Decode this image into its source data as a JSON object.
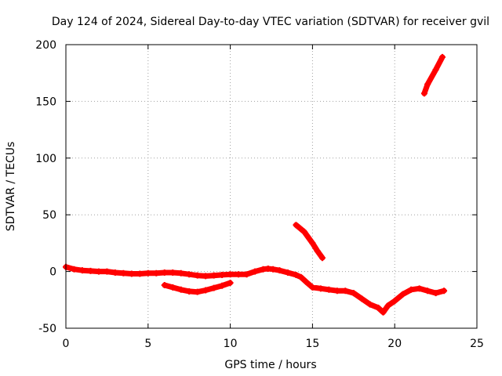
{
  "chart_data": {
    "type": "scatter",
    "title": "Day 124 of 2024, Sidereal Day-to-day VTEC variation (SDTVAR) for receiver gvil",
    "xlabel": "GPS time / hours",
    "ylabel": "SDTVAR / TECUs",
    "xlim": [
      0,
      25
    ],
    "ylim": [
      -50,
      200
    ],
    "xticks": [
      "0",
      "5",
      "10",
      "15",
      "20",
      "25"
    ],
    "yticks": [
      "-50",
      "0",
      "50",
      "100",
      "150",
      "200"
    ],
    "grid": true,
    "legend": "none",
    "series_color": "#ff0000",
    "series": [
      {
        "x": [
          0,
          0.5,
          1,
          1.5,
          2,
          2.5,
          3,
          3.5,
          4,
          4.5,
          5,
          5.5,
          6,
          6.5,
          7,
          7.5,
          8,
          8.5,
          9,
          9.5,
          10,
          10.5,
          11,
          11.5,
          12,
          12.3,
          12.6,
          13,
          13.5,
          14,
          14.3,
          14.6,
          15,
          15.5,
          16,
          16.5,
          17,
          17.5,
          18,
          18.5,
          19,
          19.3,
          19.6,
          20,
          20.5,
          21,
          21.5,
          22,
          22.5,
          23
        ],
        "y": [
          4,
          2,
          1,
          0.5,
          0,
          0,
          -1,
          -1.5,
          -2,
          -2,
          -1.5,
          -1.5,
          -1,
          -1,
          -1.5,
          -2.5,
          -3.5,
          -4,
          -3.5,
          -3,
          -2.5,
          -2.5,
          -2.5,
          0,
          2,
          2.5,
          2,
          1,
          -1,
          -3,
          -5,
          -9,
          -14,
          -15,
          -16,
          -17,
          -17,
          -19,
          -24,
          -29,
          -32,
          -36,
          -30,
          -26,
          -20,
          -16,
          -15,
          -17,
          -19,
          -17
        ]
      },
      {
        "x": [
          6,
          6.5,
          7,
          7.5,
          8,
          8.5,
          9,
          9.5,
          10
        ],
        "y": [
          -12,
          -14,
          -16,
          -17.5,
          -18,
          -16.5,
          -14.5,
          -12.5,
          -10
        ]
      },
      {
        "x": [
          14,
          14.5,
          15,
          15.3,
          15.6
        ],
        "y": [
          41,
          35,
          25,
          18,
          12
        ]
      },
      {
        "x": [
          21.8,
          22,
          22.5,
          22.9
        ],
        "y": [
          157,
          165,
          178,
          189
        ]
      }
    ]
  }
}
